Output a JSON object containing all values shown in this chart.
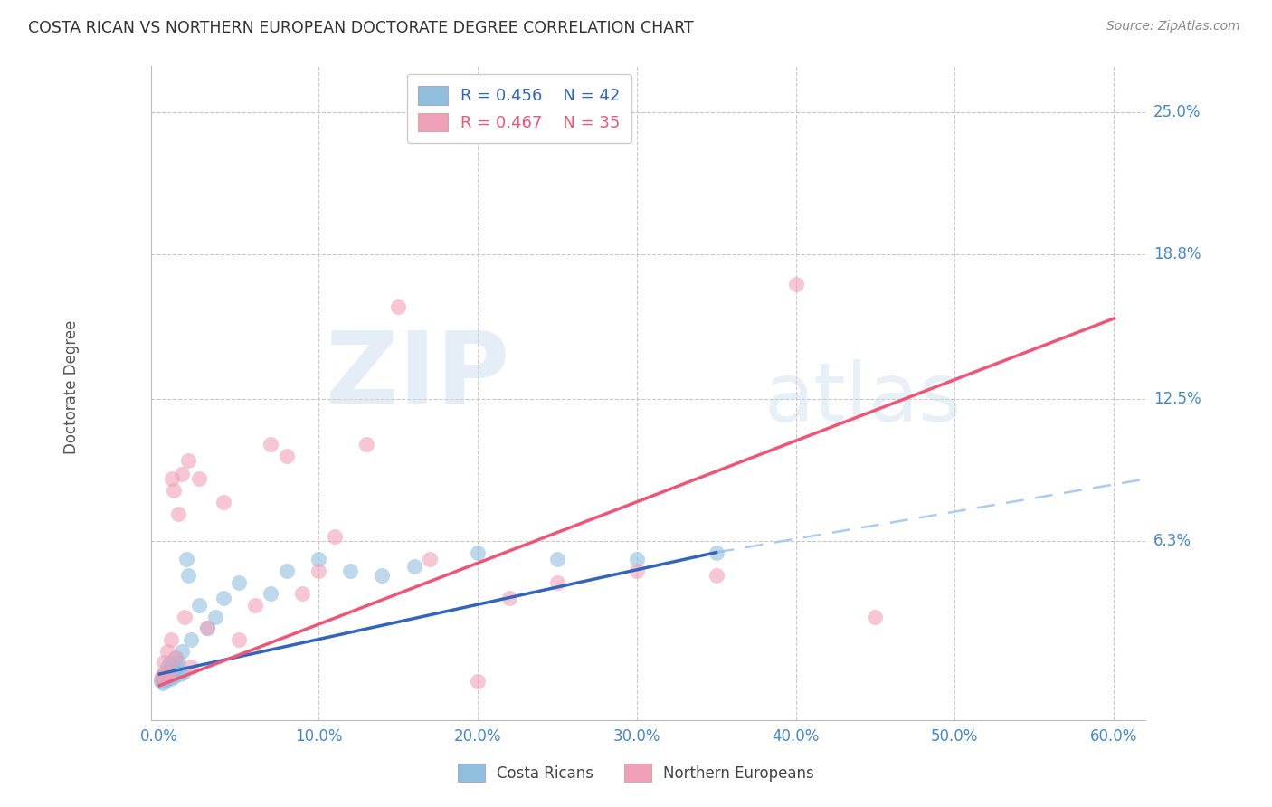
{
  "title": "COSTA RICAN VS NORTHERN EUROPEAN DOCTORATE DEGREE CORRELATION CHART",
  "source": "Source: ZipAtlas.com",
  "ylabel": "Doctorate Degree",
  "xlabel_ticks": [
    "0.0%",
    "10.0%",
    "20.0%",
    "30.0%",
    "40.0%",
    "50.0%",
    "60.0%"
  ],
  "xlabel_vals": [
    0.0,
    10.0,
    20.0,
    30.0,
    40.0,
    50.0,
    60.0
  ],
  "ytick_labels": [
    "6.3%",
    "12.5%",
    "18.8%",
    "25.0%"
  ],
  "ytick_vals": [
    6.3,
    12.5,
    18.8,
    25.0
  ],
  "xlim": [
    -0.5,
    62.0
  ],
  "ylim": [
    -1.5,
    27.0
  ],
  "legend_entries": [
    {
      "label": "R = 0.456    N = 42",
      "color": "#a8c4e0"
    },
    {
      "label": "R = 0.467    N = 35",
      "color": "#f4a0b0"
    }
  ],
  "legend_labels": [
    "Costa Ricans",
    "Northern Europeans"
  ],
  "watermark_zip": "ZIP",
  "watermark_atlas": "atlas",
  "title_color": "#333333",
  "source_color": "#888888",
  "axis_label_color": "#555555",
  "tick_label_color": "#4488cc",
  "grid_color": "#c8c8c8",
  "blue_color": "#90bedd",
  "pink_color": "#f0a0b8",
  "blue_line_color": "#3366bb",
  "pink_line_color": "#ee5577",
  "blue_dash_color": "#aaccee",
  "cr_x": [
    0.1,
    0.15,
    0.2,
    0.25,
    0.3,
    0.35,
    0.4,
    0.45,
    0.5,
    0.55,
    0.6,
    0.65,
    0.7,
    0.75,
    0.8,
    0.85,
    0.9,
    0.95,
    1.0,
    1.1,
    1.2,
    1.3,
    1.4,
    1.5,
    1.7,
    1.8,
    2.0,
    2.5,
    3.0,
    3.5,
    4.0,
    5.0,
    7.0,
    8.0,
    10.0,
    12.0,
    14.0,
    16.0,
    20.0,
    25.0,
    30.0,
    35.0
  ],
  "cr_y": [
    0.2,
    0.3,
    0.1,
    0.4,
    0.5,
    0.2,
    0.6,
    0.3,
    0.8,
    0.4,
    0.5,
    1.0,
    0.3,
    0.7,
    0.5,
    0.9,
    0.4,
    0.6,
    1.2,
    0.8,
    1.0,
    0.5,
    1.5,
    0.6,
    5.5,
    4.8,
    2.0,
    3.5,
    2.5,
    3.0,
    3.8,
    4.5,
    4.0,
    5.0,
    5.5,
    5.0,
    4.8,
    5.2,
    5.8,
    5.5,
    5.5,
    5.8
  ],
  "ne_x": [
    0.1,
    0.2,
    0.3,
    0.4,
    0.5,
    0.6,
    0.7,
    0.8,
    0.9,
    1.0,
    1.2,
    1.4,
    1.6,
    1.8,
    2.0,
    2.5,
    3.0,
    4.0,
    5.0,
    6.0,
    7.0,
    8.0,
    9.0,
    10.0,
    11.0,
    13.0,
    15.0,
    17.0,
    20.0,
    22.0,
    25.0,
    30.0,
    35.0,
    40.0,
    45.0
  ],
  "ne_y": [
    0.3,
    0.5,
    1.0,
    0.4,
    1.5,
    0.6,
    2.0,
    9.0,
    8.5,
    1.2,
    7.5,
    9.2,
    3.0,
    9.8,
    0.8,
    9.0,
    2.5,
    8.0,
    2.0,
    3.5,
    10.5,
    10.0,
    4.0,
    5.0,
    6.5,
    10.5,
    16.5,
    5.5,
    0.2,
    3.8,
    4.5,
    5.0,
    4.8,
    17.5,
    3.0
  ],
  "cr_line_x0": 0.0,
  "cr_line_x1": 35.0,
  "cr_line_y0": 0.5,
  "cr_line_y1": 5.8,
  "ne_line_x0": 0.0,
  "ne_line_x1": 60.0,
  "ne_line_y0": 0.0,
  "ne_line_y1": 16.0,
  "dash_line_x0": 35.0,
  "dash_line_x1": 62.0,
  "dash_line_y0": 5.8,
  "dash_line_y1": 9.0
}
